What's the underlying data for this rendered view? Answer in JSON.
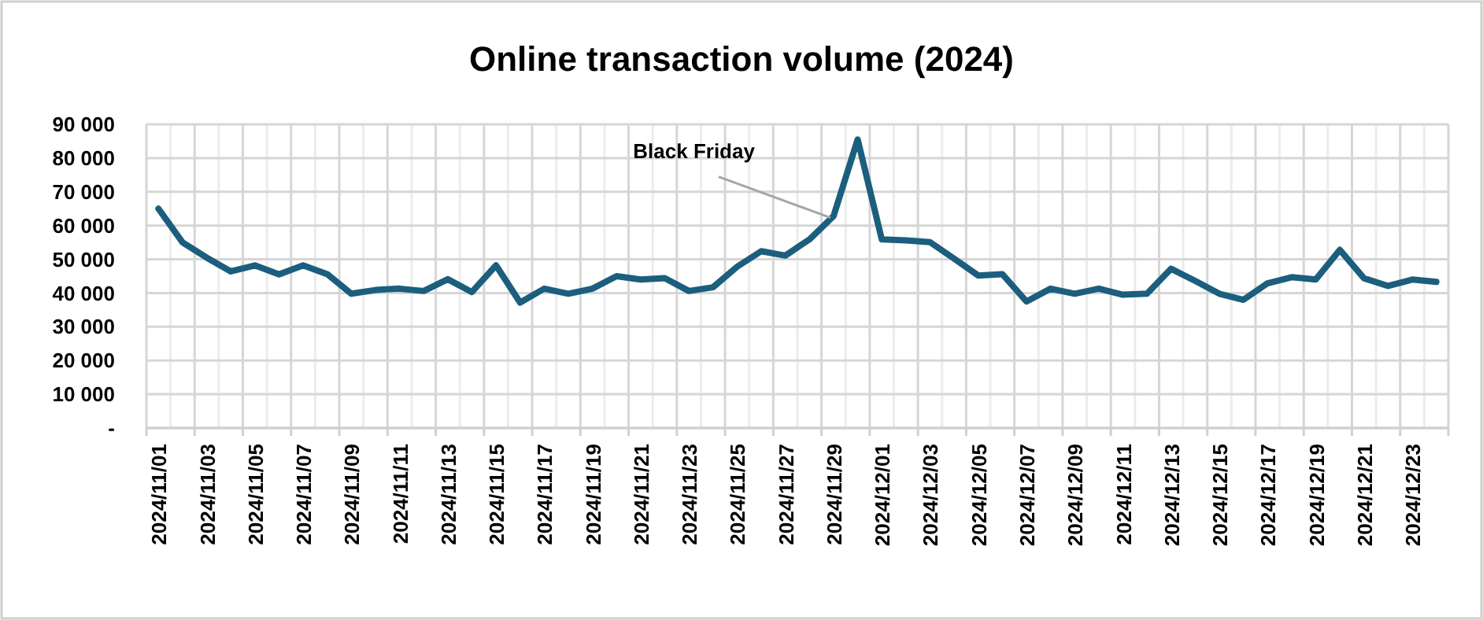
{
  "chart_data": {
    "type": "line",
    "title": "Online transaction volume (2024)",
    "categories": [
      "2024/11/01",
      null,
      "2024/11/03",
      null,
      "2024/11/05",
      null,
      "2024/11/07",
      null,
      "2024/11/09",
      null,
      "2024/11/11",
      null,
      "2024/11/13",
      null,
      "2024/11/15",
      null,
      "2024/11/17",
      null,
      "2024/11/19",
      null,
      "2024/11/21",
      null,
      "2024/11/23",
      null,
      "2024/11/25",
      null,
      "2024/11/27",
      null,
      "2024/11/29",
      null,
      "2024/12/01",
      null,
      "2024/12/03",
      null,
      "2024/12/05",
      null,
      "2024/12/07",
      null,
      "2024/12/09",
      null,
      "2024/12/11",
      null,
      "2024/12/13",
      null,
      "2024/12/15",
      null,
      "2024/12/17",
      null,
      "2024/12/19",
      null,
      "2024/12/21",
      null,
      "2024/12/23",
      null
    ],
    "series": [
      {
        "color": "#1b5e7e",
        "values": [
          65000,
          55000,
          50500,
          46400,
          48200,
          45500,
          48200,
          45600,
          39800,
          40900,
          41300,
          40600,
          44100,
          40300,
          48200,
          37200,
          41300,
          39800,
          41300,
          45000,
          44000,
          44400,
          40600,
          41700,
          47800,
          52400,
          51100,
          55900,
          62800,
          85500,
          55900,
          55600,
          55100,
          50200,
          45200,
          45600,
          37500,
          41300,
          39800,
          41300,
          39500,
          39800,
          47200,
          43600,
          39800,
          38000,
          42900,
          44700,
          44000,
          52800,
          44400,
          42100,
          44000,
          43300
        ]
      }
    ],
    "ylim": [
      0,
      90000
    ],
    "yticks": [
      {
        "value": 0,
        "label": "-"
      },
      {
        "value": 10000,
        "label": "10 000"
      },
      {
        "value": 20000,
        "label": "20 000"
      },
      {
        "value": 30000,
        "label": "30 000"
      },
      {
        "value": 40000,
        "label": "40 000"
      },
      {
        "value": 50000,
        "label": "50 000"
      },
      {
        "value": 60000,
        "label": "60 000"
      },
      {
        "value": 70000,
        "label": "70 000"
      },
      {
        "value": 80000,
        "label": "80 000"
      },
      {
        "value": 90000,
        "label": "90 000"
      }
    ],
    "grid": true,
    "marker": "none",
    "line_style": "solid",
    "annotations": [
      {
        "text": "Black Friday",
        "x": "2024/11/29",
        "y": 62800
      }
    ]
  }
}
